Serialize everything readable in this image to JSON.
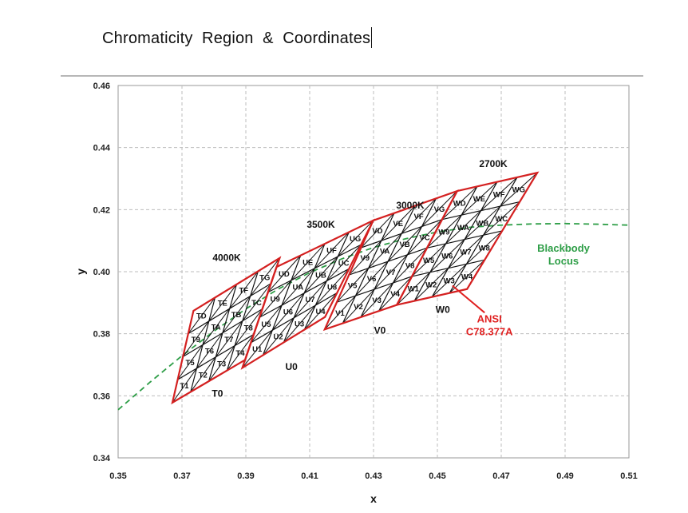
{
  "slide": {
    "title": "Chromaticity  Region  &  Coordinates"
  },
  "colors": {
    "grid": "#bdbdbd",
    "quad": "#d42020",
    "mesh": "#111111",
    "locus": "#2e9e47",
    "annotation": "#e02020"
  },
  "chart_data": {
    "type": "scatter",
    "title": "",
    "xlabel": "x",
    "ylabel": "y",
    "xlim": [
      0.35,
      0.51
    ],
    "ylim": [
      0.34,
      0.46
    ],
    "xticks": [
      "0.35",
      "0.37",
      "0.39",
      "0.41",
      "0.43",
      "0.45",
      "0.47",
      "0.49",
      "0.51"
    ],
    "yticks": [
      "0.34",
      "0.36",
      "0.38",
      "0.40",
      "0.42",
      "0.44",
      "0.46"
    ],
    "grid": "dashed",
    "cct_labels": [
      {
        "text": "4000K",
        "x": 0.384,
        "y": 0.4035
      },
      {
        "text": "3500K",
        "x": 0.4135,
        "y": 0.4141
      },
      {
        "text": "3000K",
        "x": 0.4415,
        "y": 0.4204
      },
      {
        "text": "2700K",
        "x": 0.4675,
        "y": 0.4337
      }
    ],
    "quadrangles": [
      {
        "name": "4000K",
        "corners": [
          [
            0.3736,
            0.3874
          ],
          [
            0.4006,
            0.4044
          ],
          [
            0.3898,
            0.3716
          ],
          [
            0.367,
            0.3578
          ]
        ]
      },
      {
        "name": "3500K",
        "corners": [
          [
            0.3996,
            0.4015
          ],
          [
            0.4299,
            0.4165
          ],
          [
            0.4148,
            0.3854
          ],
          [
            0.3889,
            0.369
          ]
        ]
      },
      {
        "name": "3000K",
        "corners": [
          [
            0.4299,
            0.4165
          ],
          [
            0.4562,
            0.426
          ],
          [
            0.4373,
            0.3893
          ],
          [
            0.4147,
            0.3814
          ]
        ]
      },
      {
        "name": "2700K",
        "corners": [
          [
            0.4562,
            0.426
          ],
          [
            0.4813,
            0.4319
          ],
          [
            0.4593,
            0.3944
          ],
          [
            0.4373,
            0.3893
          ]
        ]
      }
    ],
    "bins": {
      "T": [
        "T1",
        "T2",
        "T3",
        "T4",
        "T5",
        "T6",
        "T7",
        "T8",
        "T9",
        "TA",
        "TB",
        "TC",
        "TD",
        "TE",
        "TF",
        "TG"
      ],
      "U": [
        "U1",
        "U2",
        "U3",
        "U4",
        "U5",
        "U6",
        "U7",
        "U8",
        "U9",
        "UA",
        "UB",
        "UC",
        "UD",
        "UE",
        "UF",
        "UG"
      ],
      "V": [
        "V1",
        "V2",
        "V3",
        "V4",
        "V5",
        "V6",
        "V7",
        "V8",
        "V9",
        "VA",
        "VB",
        "VC",
        "VD",
        "VE",
        "VF",
        "VG"
      ],
      "W": [
        "W1",
        "W2",
        "W3",
        "W4",
        "W5",
        "W6",
        "W7",
        "W8",
        "W9",
        "WA",
        "WB",
        "WC",
        "WD",
        "WE",
        "WF",
        "WG"
      ]
    },
    "region_labels": [
      {
        "text": "T0",
        "x": 0.3811,
        "y": 0.3597
      },
      {
        "text": "U0",
        "x": 0.4043,
        "y": 0.3683
      },
      {
        "text": "V0",
        "x": 0.432,
        "y": 0.38
      },
      {
        "text": "W0",
        "x": 0.4517,
        "y": 0.3867
      }
    ],
    "blackbody_locus": {
      "label_line1": "Blackbody",
      "label_line2": "Locus",
      "label_at": {
        "x": 0.4895,
        "y": 0.4065
      },
      "points": [
        [
          0.35,
          0.3555
        ],
        [
          0.36,
          0.3644
        ],
        [
          0.37,
          0.3729
        ],
        [
          0.38,
          0.3808
        ],
        [
          0.39,
          0.388
        ],
        [
          0.4,
          0.3943
        ],
        [
          0.41,
          0.3997
        ],
        [
          0.42,
          0.4041
        ],
        [
          0.43,
          0.4078
        ],
        [
          0.44,
          0.4106
        ],
        [
          0.45,
          0.4128
        ],
        [
          0.46,
          0.4143
        ],
        [
          0.47,
          0.415
        ],
        [
          0.48,
          0.4154
        ],
        [
          0.49,
          0.4155
        ],
        [
          0.5,
          0.4153
        ],
        [
          0.51,
          0.415
        ]
      ]
    },
    "annotation": {
      "line1": "ANSI",
      "line2": "C78.377A",
      "label_at": {
        "x": 0.4663,
        "y": 0.3837
      },
      "arrow_to": {
        "x": 0.4547,
        "y": 0.3955
      }
    }
  }
}
